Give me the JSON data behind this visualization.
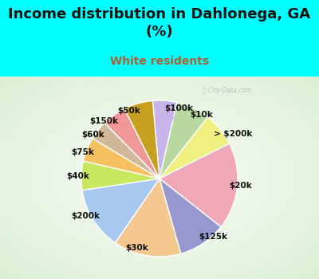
{
  "title": "Income distribution in Dahlonega, GA\n(%)",
  "subtitle": "White residents",
  "title_color": "#111111",
  "subtitle_color": "#b06030",
  "bg_color": "#00ffff",
  "panel_color": "#e8f5e0",
  "labels": [
    "$100k",
    "$10k",
    "> $200k",
    "$20k",
    "$125k",
    "$30k",
    "$200k",
    "$40k",
    "$75k",
    "$60k",
    "$150k",
    "$50k"
  ],
  "values": [
    5,
    7,
    7,
    18,
    10,
    14,
    13,
    6,
    5,
    4,
    5,
    6
  ],
  "colors": [
    "#c8b4e8",
    "#b8d8a0",
    "#f0f080",
    "#f0a8b8",
    "#9898d0",
    "#f5c890",
    "#a8c8f0",
    "#c8e860",
    "#f5c060",
    "#d0b898",
    "#f09898",
    "#c8a020"
  ],
  "start_angle": 95,
  "title_fontsize": 13,
  "subtitle_fontsize": 10,
  "label_fontsize": 7.5
}
